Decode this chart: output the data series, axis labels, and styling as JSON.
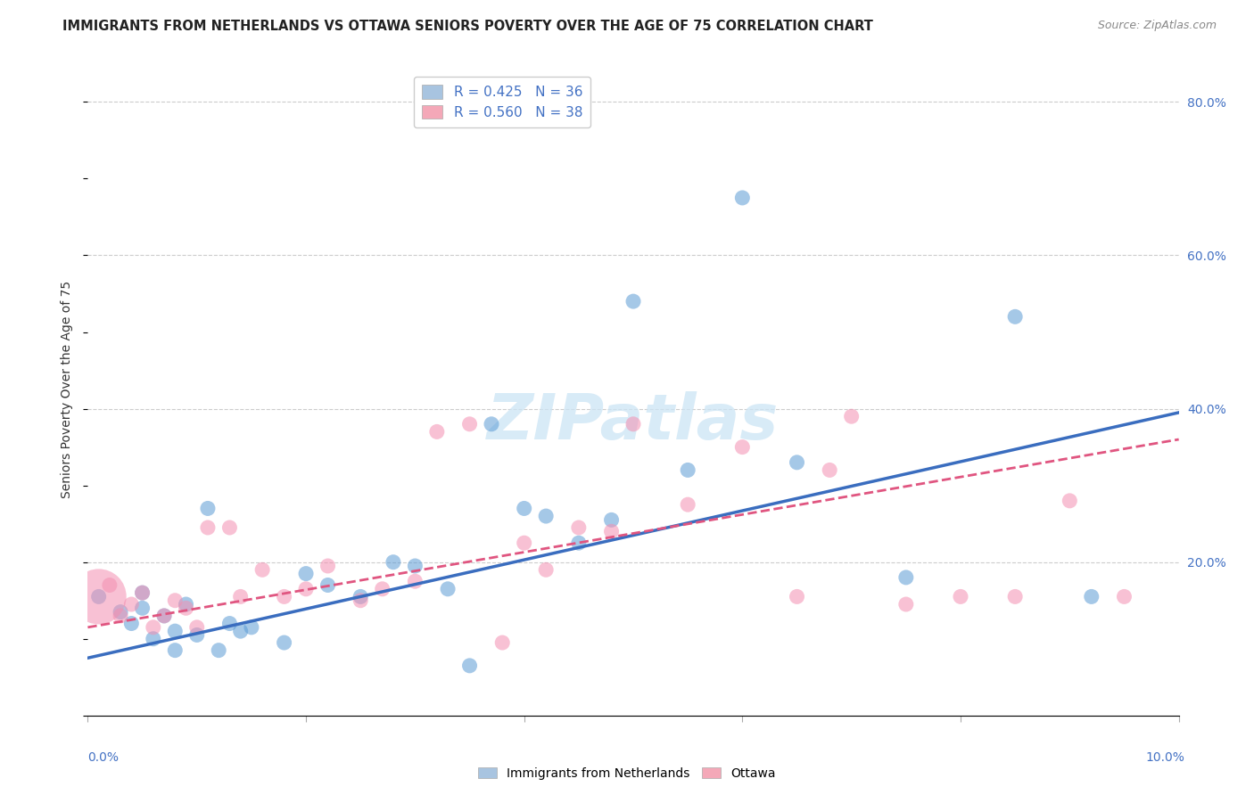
{
  "title": "IMMIGRANTS FROM NETHERLANDS VS OTTAWA SENIORS POVERTY OVER THE AGE OF 75 CORRELATION CHART",
  "source": "Source: ZipAtlas.com",
  "ylabel": "Seniors Poverty Over the Age of 75",
  "xlim": [
    0.0,
    0.1
  ],
  "ylim": [
    0.0,
    0.85
  ],
  "legend1_label": "R = 0.425   N = 36",
  "legend2_label": "R = 0.560   N = 38",
  "legend_color1": "#a8c4e0",
  "legend_color2": "#f4a8b8",
  "blue_color": "#5b9bd5",
  "pink_color": "#f48fb1",
  "line_blue": "#3a6dbf",
  "line_pink": "#e05580",
  "blue_scatter_x": [
    0.001,
    0.003,
    0.004,
    0.005,
    0.005,
    0.006,
    0.007,
    0.008,
    0.008,
    0.009,
    0.01,
    0.011,
    0.012,
    0.013,
    0.014,
    0.015,
    0.018,
    0.02,
    0.022,
    0.025,
    0.028,
    0.03,
    0.033,
    0.035,
    0.037,
    0.04,
    0.042,
    0.045,
    0.048,
    0.05,
    0.055,
    0.06,
    0.065,
    0.075,
    0.085,
    0.092
  ],
  "blue_scatter_y": [
    0.155,
    0.135,
    0.12,
    0.14,
    0.16,
    0.1,
    0.13,
    0.11,
    0.085,
    0.145,
    0.105,
    0.27,
    0.085,
    0.12,
    0.11,
    0.115,
    0.095,
    0.185,
    0.17,
    0.155,
    0.2,
    0.195,
    0.165,
    0.065,
    0.38,
    0.27,
    0.26,
    0.225,
    0.255,
    0.54,
    0.32,
    0.675,
    0.33,
    0.18,
    0.52,
    0.155
  ],
  "pink_scatter_x": [
    0.001,
    0.002,
    0.003,
    0.004,
    0.005,
    0.006,
    0.007,
    0.008,
    0.009,
    0.01,
    0.011,
    0.013,
    0.014,
    0.016,
    0.018,
    0.02,
    0.022,
    0.025,
    0.027,
    0.03,
    0.032,
    0.035,
    0.038,
    0.04,
    0.042,
    0.045,
    0.048,
    0.05,
    0.055,
    0.06,
    0.065,
    0.068,
    0.07,
    0.075,
    0.08,
    0.085,
    0.09,
    0.095
  ],
  "pink_scatter_y": [
    0.155,
    0.17,
    0.13,
    0.145,
    0.16,
    0.115,
    0.13,
    0.15,
    0.14,
    0.115,
    0.245,
    0.245,
    0.155,
    0.19,
    0.155,
    0.165,
    0.195,
    0.15,
    0.165,
    0.175,
    0.37,
    0.38,
    0.095,
    0.225,
    0.19,
    0.245,
    0.24,
    0.38,
    0.275,
    0.35,
    0.155,
    0.32,
    0.39,
    0.145,
    0.155,
    0.155,
    0.28,
    0.155
  ],
  "pink_large_idx": 0,
  "blue_line_x": [
    0.0,
    0.1
  ],
  "blue_line_y": [
    0.075,
    0.395
  ],
  "pink_line_x": [
    0.0,
    0.1
  ],
  "pink_line_y": [
    0.115,
    0.36
  ]
}
